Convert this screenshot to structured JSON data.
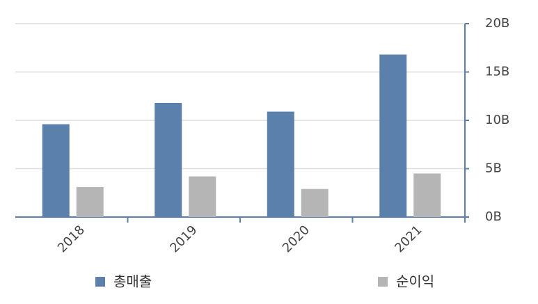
{
  "chart_data": {
    "type": "bar",
    "categories": [
      "2018",
      "2019",
      "2020",
      "2021"
    ],
    "series": [
      {
        "name": "총매출",
        "color": "#5a80ab",
        "values": [
          9.6,
          11.8,
          10.9,
          16.8
        ]
      },
      {
        "name": "순이익",
        "color": "#b5b5b5",
        "values": [
          3.1,
          4.2,
          2.9,
          4.5
        ]
      }
    ],
    "ylim": [
      0,
      20
    ],
    "yticks": [
      {
        "value": 0,
        "label": "0B"
      },
      {
        "value": 5,
        "label": "5B"
      },
      {
        "value": 10,
        "label": "10B"
      },
      {
        "value": 15,
        "label": "15B"
      },
      {
        "value": 20,
        "label": "20B"
      }
    ],
    "grid": true
  }
}
